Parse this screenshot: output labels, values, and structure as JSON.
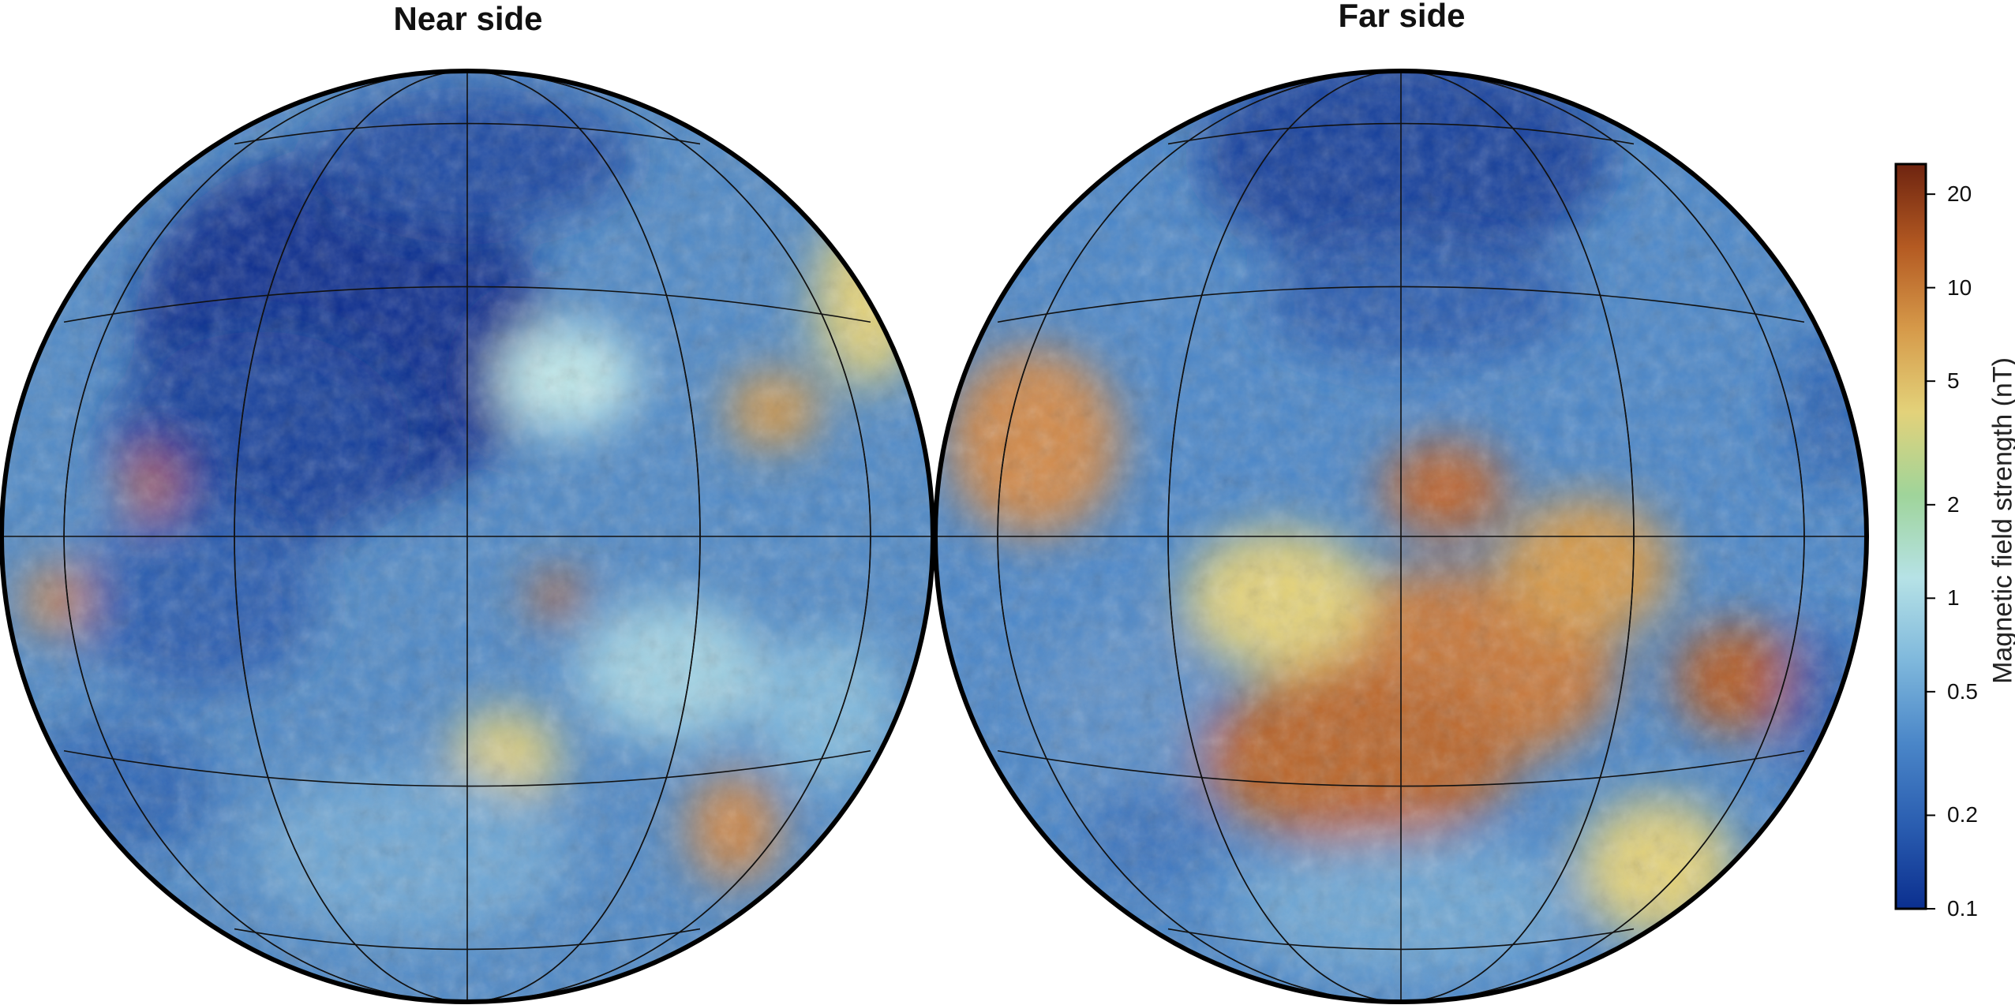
{
  "panels": {
    "near": {
      "title": "Near side"
    },
    "far": {
      "title": "Far side"
    }
  },
  "colorbar": {
    "label": "Magnetic field strength (nT)",
    "scale": "log",
    "range": [
      0.1,
      25
    ],
    "ticks": [
      {
        "value": 0.1,
        "text": "0.1"
      },
      {
        "value": 0.2,
        "text": "0.2"
      },
      {
        "value": 0.5,
        "text": "0.5"
      },
      {
        "value": 1,
        "text": "1"
      },
      {
        "value": 2,
        "text": "2"
      },
      {
        "value": 5,
        "text": "5"
      },
      {
        "value": 10,
        "text": "10"
      },
      {
        "value": 20,
        "text": "20"
      }
    ],
    "colormap": [
      "#0b2f8f",
      "#2a5db0",
      "#4a86c8",
      "#7fb8dc",
      "#b6e2e6",
      "#9fd49a",
      "#e3d27a",
      "#d69a4a",
      "#b45a22",
      "#6e2410"
    ]
  },
  "colors": {
    "deep_blue": "#0b2f8f",
    "mid_blue": "#3d74bd",
    "light_blue": "#86c3df",
    "cyan": "#bfe8ea",
    "yellow": "#e3d27a",
    "orange": "#d1894a",
    "red_brown": "#a24b1e"
  }
}
